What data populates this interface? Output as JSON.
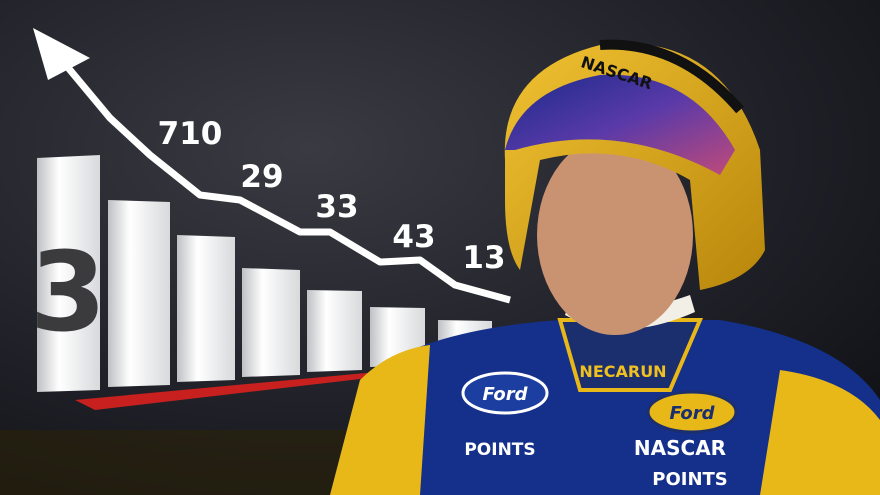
{
  "graphic": {
    "big_number": "3",
    "labels": [
      "710",
      "29",
      "33",
      "43",
      "13"
    ]
  },
  "person": {
    "helmet_text": "NASCAR",
    "name_patch": "NECARUN",
    "patches": [
      "Ford",
      "POINTS",
      "Ford",
      "NASCAR",
      "POINTS"
    ]
  }
}
